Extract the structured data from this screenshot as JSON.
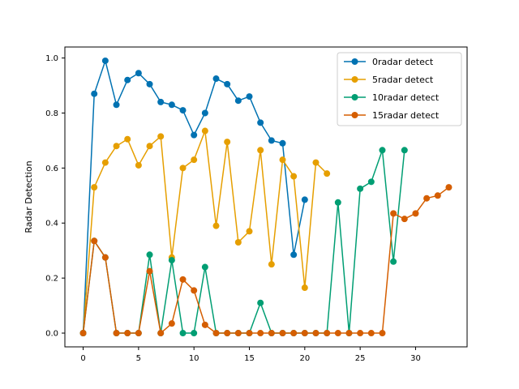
{
  "chart_data": {
    "type": "line",
    "title": "",
    "xlabel": "",
    "ylabel": "Radar Detection",
    "xlim": [
      -1.65,
      34.65
    ],
    "ylim": [
      -0.05,
      1.04
    ],
    "xticks": [
      0,
      5,
      10,
      15,
      20,
      25,
      30
    ],
    "yticks": [
      0.0,
      0.2,
      0.4,
      0.6,
      0.8,
      1.0
    ],
    "xtick_labels": [
      "0",
      "5",
      "10",
      "15",
      "20",
      "25",
      "30"
    ],
    "ytick_labels": [
      "0.0",
      "0.2",
      "0.4",
      "0.6",
      "0.8",
      "1.0"
    ],
    "grid": false,
    "legend_position": "top-right",
    "series": [
      {
        "name": "0radar detect",
        "color": "#0072b2",
        "x": [
          0,
          1,
          2,
          3,
          4,
          5,
          6,
          7,
          8,
          9,
          10,
          11,
          12,
          13,
          14,
          15,
          16,
          17,
          18,
          19,
          20
        ],
        "y": [
          0.0,
          0.87,
          0.99,
          0.83,
          0.92,
          0.945,
          0.905,
          0.84,
          0.83,
          0.81,
          0.72,
          0.8,
          0.925,
          0.905,
          0.845,
          0.86,
          0.765,
          0.7,
          0.69,
          0.285,
          0.485
        ]
      },
      {
        "name": "5radar detect",
        "color": "#e69f00",
        "x": [
          0,
          1,
          2,
          3,
          4,
          5,
          6,
          7,
          8,
          9,
          10,
          11,
          12,
          13,
          14,
          15,
          16,
          17,
          18,
          19,
          20,
          21,
          22
        ],
        "y": [
          0.0,
          0.53,
          0.62,
          0.68,
          0.705,
          0.61,
          0.68,
          0.715,
          0.275,
          0.6,
          0.63,
          0.735,
          0.39,
          0.695,
          0.33,
          0.37,
          0.665,
          0.25,
          0.63,
          0.57,
          0.165,
          0.62,
          0.58
        ]
      },
      {
        "name": "10radar detect",
        "color": "#009e73",
        "x": [
          0,
          1,
          2,
          3,
          4,
          5,
          6,
          7,
          8,
          9,
          10,
          11,
          12,
          13,
          14,
          15,
          16,
          17,
          18,
          19,
          20,
          21,
          22,
          23,
          24,
          25,
          26,
          27,
          28,
          29
        ],
        "y": [
          0.0,
          0.335,
          0.275,
          0.0,
          0.0,
          0.0,
          0.285,
          0.0,
          0.265,
          0.0,
          0.0,
          0.24,
          0.0,
          0.0,
          0.0,
          0.0,
          0.11,
          0.0,
          0.0,
          0.0,
          0.0,
          0.0,
          0.0,
          0.475,
          0.0,
          0.525,
          0.55,
          0.665,
          0.26,
          0.665
        ]
      },
      {
        "name": "15radar detect",
        "color": "#d55e00",
        "x": [
          0,
          1,
          2,
          3,
          4,
          5,
          6,
          7,
          8,
          9,
          10,
          11,
          12,
          13,
          14,
          15,
          16,
          17,
          18,
          19,
          20,
          21,
          22,
          23,
          24,
          25,
          26,
          27,
          28,
          29,
          30,
          31,
          32,
          33
        ],
        "y": [
          0.0,
          0.335,
          0.275,
          0.0,
          0.0,
          0.0,
          0.225,
          0.0,
          0.035,
          0.195,
          0.155,
          0.03,
          0.0,
          0.0,
          0.0,
          0.0,
          0.0,
          0.0,
          0.0,
          0.0,
          0.0,
          0.0,
          0.0,
          0.0,
          0.0,
          0.0,
          0.0,
          0.0,
          0.435,
          0.415,
          0.435,
          0.49,
          0.5,
          0.53
        ]
      }
    ]
  }
}
